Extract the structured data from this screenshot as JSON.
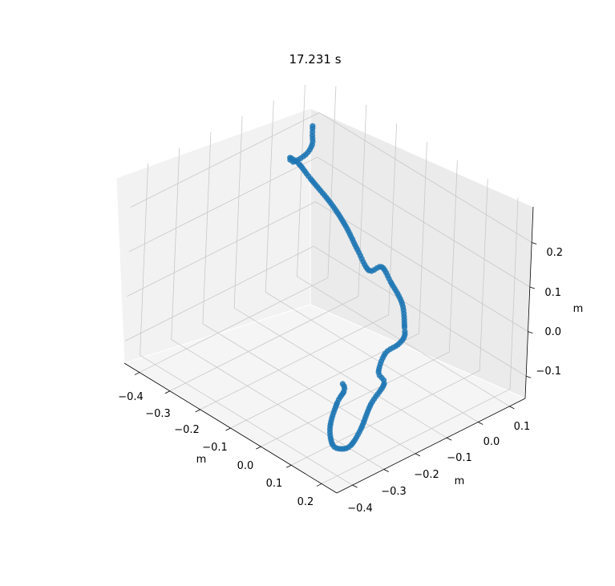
{
  "chart_data": {
    "type": "scatter",
    "projection": "3d",
    "title": "17.231 s",
    "xlabel": "m",
    "ylabel": "m",
    "zlabel": "m",
    "xlim": [
      -0.45,
      0.25
    ],
    "ylim": [
      -0.45,
      0.15
    ],
    "zlim": [
      -0.15,
      0.28
    ],
    "xticks": [
      "−0.4",
      "−0.3",
      "−0.2",
      "−0.1",
      "0.0",
      "0.1",
      "0.2"
    ],
    "yticks": [
      "−0.4",
      "−0.3",
      "−0.2",
      "−0.1",
      "0.0",
      "0.1"
    ],
    "zticks": [
      "−0.1",
      "0.0",
      "0.1",
      "0.2"
    ],
    "grid": true,
    "color": "#1f77b4",
    "trajectory_points": [
      {
        "x": -0.42,
        "y": 0.1,
        "z": 0.2
      },
      {
        "x": -0.38,
        "y": 0.06,
        "z": 0.21
      },
      {
        "x": -0.34,
        "y": 0.02,
        "z": 0.22
      },
      {
        "x": -0.32,
        "y": -0.02,
        "z": 0.22
      },
      {
        "x": -0.33,
        "y": -0.05,
        "z": 0.21
      },
      {
        "x": -0.36,
        "y": -0.03,
        "z": 0.2
      },
      {
        "x": -0.38,
        "y": 0.02,
        "z": 0.16
      },
      {
        "x": -0.37,
        "y": 0.05,
        "z": 0.12
      },
      {
        "x": -0.33,
        "y": 0.08,
        "z": 0.07
      },
      {
        "x": -0.28,
        "y": 0.08,
        "z": 0.04
      },
      {
        "x": -0.22,
        "y": 0.06,
        "z": 0.02
      },
      {
        "x": -0.18,
        "y": 0.06,
        "z": -0.01
      },
      {
        "x": -0.12,
        "y": 0.04,
        "z": 0.03
      },
      {
        "x": -0.05,
        "y": 0.0,
        "z": 0.04
      },
      {
        "x": 0.02,
        "y": -0.03,
        "z": 0.03
      },
      {
        "x": 0.08,
        "y": -0.08,
        "z": 0.02
      },
      {
        "x": 0.12,
        "y": -0.12,
        "z": 0.03
      },
      {
        "x": 0.16,
        "y": -0.18,
        "z": 0.05
      },
      {
        "x": 0.18,
        "y": -0.24,
        "z": 0.06
      },
      {
        "x": 0.2,
        "y": -0.28,
        "z": 0.04
      },
      {
        "x": 0.19,
        "y": -0.25,
        "z": 0.0
      },
      {
        "x": 0.18,
        "y": -0.28,
        "z": -0.04
      },
      {
        "x": 0.2,
        "y": -0.33,
        "z": -0.07
      },
      {
        "x": 0.22,
        "y": -0.38,
        "z": -0.08
      },
      {
        "x": 0.23,
        "y": -0.42,
        "z": -0.07
      },
      {
        "x": 0.23,
        "y": -0.45,
        "z": -0.05
      },
      {
        "x": 0.21,
        "y": -0.44,
        "z": -0.02
      },
      {
        "x": 0.19,
        "y": -0.4,
        "z": 0.01
      },
      {
        "x": 0.18,
        "y": -0.37,
        "z": 0.02
      },
      {
        "x": 0.19,
        "y": -0.38,
        "z": 0.04
      },
      {
        "x": 0.2,
        "y": -0.4,
        "z": 0.06
      }
    ]
  }
}
